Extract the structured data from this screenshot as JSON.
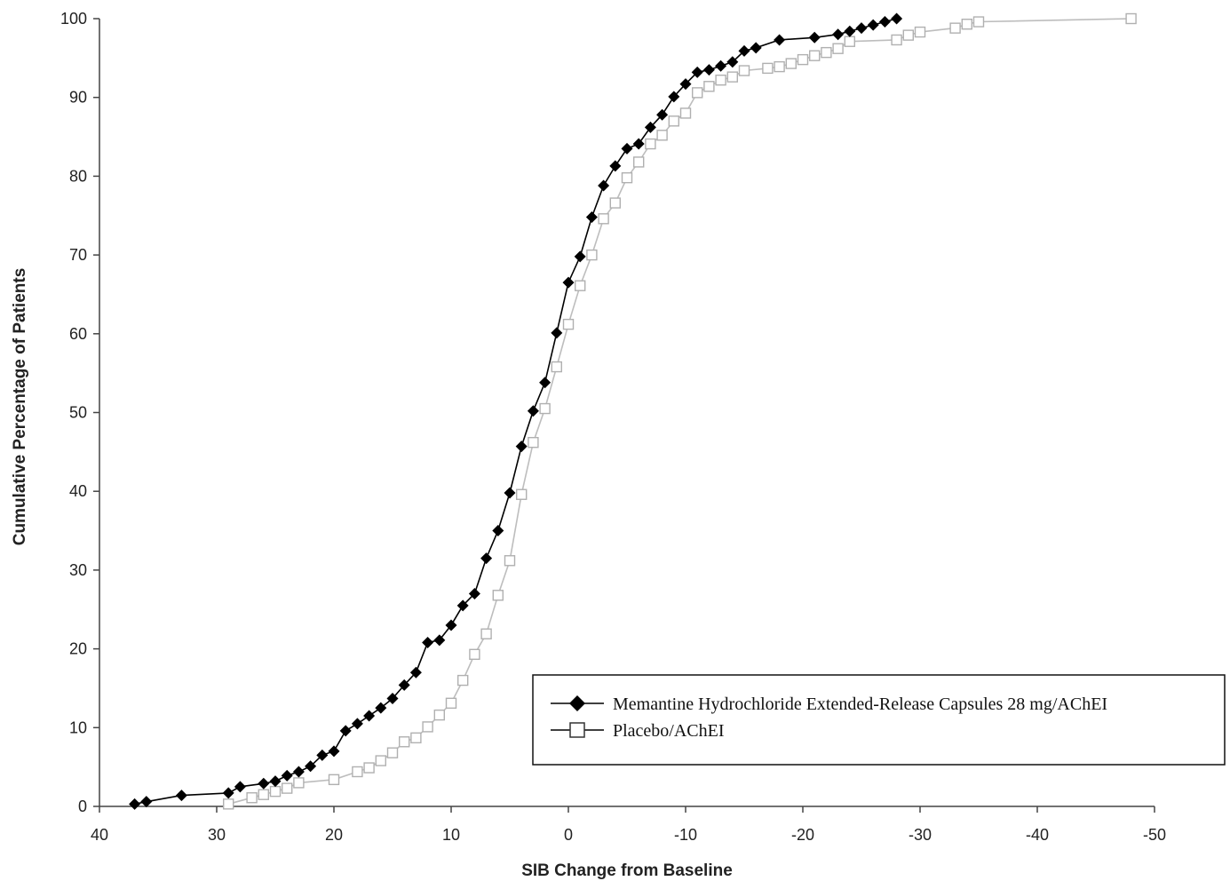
{
  "chart_data": {
    "type": "line",
    "title": "",
    "xlabel": "SIB Change from Baseline",
    "ylabel": "Cumulative Percentage of Patients",
    "xlim": [
      40,
      -50
    ],
    "ylim": [
      0,
      100
    ],
    "x_reversed": true,
    "x_ticks": [
      40,
      30,
      20,
      10,
      0,
      -10,
      -20,
      -30,
      -40,
      -50
    ],
    "x_tick_labels": [
      "40",
      "30",
      "20",
      "10",
      "0",
      "-10",
      "-20",
      "-30",
      "-40",
      "-50"
    ],
    "y_ticks": [
      0,
      10,
      20,
      30,
      40,
      50,
      60,
      70,
      80,
      90,
      100
    ],
    "y_tick_labels": [
      "0",
      "10",
      "20",
      "30",
      "40",
      "50",
      "60",
      "70",
      "80",
      "90",
      "100"
    ],
    "grid": false,
    "legend_position": "bottom-right",
    "series": [
      {
        "name": "Memantine Hydrochloride Extended-Release Capsules 28 mg/AChEI",
        "marker": "diamond-filled",
        "color": "#000000",
        "points": [
          [
            37,
            0.3
          ],
          [
            36,
            0.6
          ],
          [
            33,
            1.4
          ],
          [
            29,
            1.7
          ],
          [
            28,
            2.5
          ],
          [
            26,
            2.9
          ],
          [
            25,
            3.2
          ],
          [
            24,
            3.9
          ],
          [
            23,
            4.4
          ],
          [
            22,
            5.1
          ],
          [
            21,
            6.5
          ],
          [
            20,
            7.0
          ],
          [
            19,
            9.6
          ],
          [
            18,
            10.5
          ],
          [
            17,
            11.5
          ],
          [
            16,
            12.5
          ],
          [
            15,
            13.7
          ],
          [
            14,
            15.4
          ],
          [
            13,
            17.0
          ],
          [
            12,
            20.8
          ],
          [
            11,
            21.1
          ],
          [
            10,
            23.0
          ],
          [
            9,
            25.5
          ],
          [
            8,
            27.0
          ],
          [
            7,
            31.5
          ],
          [
            6,
            35.0
          ],
          [
            5,
            39.8
          ],
          [
            4,
            45.7
          ],
          [
            3,
            50.2
          ],
          [
            2,
            53.8
          ],
          [
            1,
            60.1
          ],
          [
            0,
            66.5
          ],
          [
            -1,
            69.8
          ],
          [
            -2,
            74.8
          ],
          [
            -3,
            78.8
          ],
          [
            -4,
            81.3
          ],
          [
            -5,
            83.5
          ],
          [
            -6,
            84.1
          ],
          [
            -7,
            86.2
          ],
          [
            -8,
            87.8
          ],
          [
            -9,
            90.1
          ],
          [
            -10,
            91.7
          ],
          [
            -11,
            93.2
          ],
          [
            -12,
            93.5
          ],
          [
            -13,
            94.0
          ],
          [
            -14,
            94.5
          ],
          [
            -15,
            95.9
          ],
          [
            -16,
            96.3
          ],
          [
            -18,
            97.3
          ],
          [
            -21,
            97.6
          ],
          [
            -23,
            98.0
          ],
          [
            -24,
            98.4
          ],
          [
            -25,
            98.8
          ],
          [
            -26,
            99.2
          ],
          [
            -27,
            99.6
          ],
          [
            -28,
            100
          ]
        ]
      },
      {
        "name": "Placebo/AChEI",
        "marker": "square-open",
        "color": "#bdbdbd",
        "points": [
          [
            29,
            0.3
          ],
          [
            27,
            1.1
          ],
          [
            26,
            1.5
          ],
          [
            25,
            1.9
          ],
          [
            24,
            2.3
          ],
          [
            23,
            3.0
          ],
          [
            20,
            3.4
          ],
          [
            18,
            4.4
          ],
          [
            17,
            4.9
          ],
          [
            16,
            5.8
          ],
          [
            15,
            6.8
          ],
          [
            14,
            8.2
          ],
          [
            13,
            8.7
          ],
          [
            12,
            10.1
          ],
          [
            11,
            11.6
          ],
          [
            10,
            13.1
          ],
          [
            9,
            16.0
          ],
          [
            8,
            19.3
          ],
          [
            7,
            21.9
          ],
          [
            6,
            26.8
          ],
          [
            5,
            31.2
          ],
          [
            4,
            39.6
          ],
          [
            3,
            46.2
          ],
          [
            2,
            50.5
          ],
          [
            1,
            55.8
          ],
          [
            0,
            61.2
          ],
          [
            -1,
            66.1
          ],
          [
            -2,
            70.0
          ],
          [
            -3,
            74.6
          ],
          [
            -4,
            76.6
          ],
          [
            -5,
            79.8
          ],
          [
            -6,
            81.8
          ],
          [
            -7,
            84.1
          ],
          [
            -8,
            85.2
          ],
          [
            -9,
            87.0
          ],
          [
            -10,
            88.0
          ],
          [
            -11,
            90.6
          ],
          [
            -12,
            91.4
          ],
          [
            -13,
            92.2
          ],
          [
            -14,
            92.6
          ],
          [
            -15,
            93.4
          ],
          [
            -17,
            93.7
          ],
          [
            -18,
            93.9
          ],
          [
            -19,
            94.3
          ],
          [
            -20,
            94.8
          ],
          [
            -21,
            95.3
          ],
          [
            -22,
            95.7
          ],
          [
            -23,
            96.2
          ],
          [
            -24,
            97.1
          ],
          [
            -28,
            97.3
          ],
          [
            -29,
            97.9
          ],
          [
            -30,
            98.3
          ],
          [
            -33,
            98.8
          ],
          [
            -34,
            99.3
          ],
          [
            -35,
            99.6
          ],
          [
            -48,
            100
          ]
        ]
      }
    ]
  }
}
